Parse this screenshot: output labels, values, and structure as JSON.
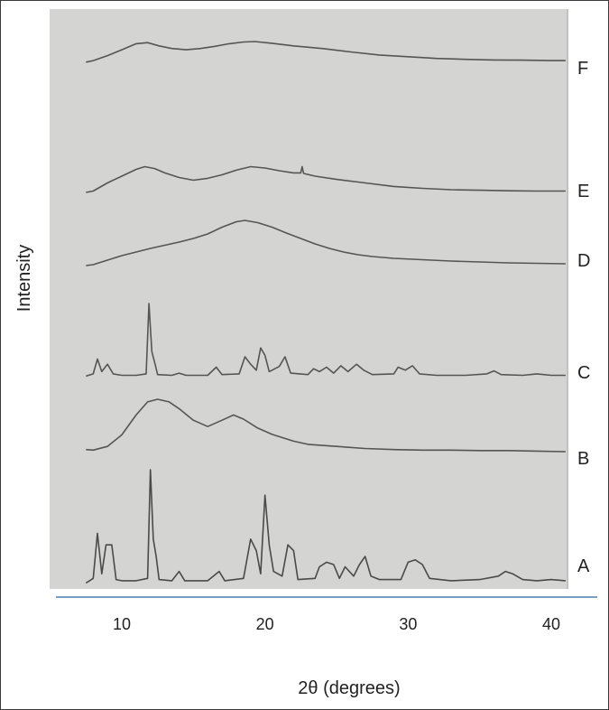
{
  "chart_data": {
    "type": "line",
    "xlabel": "2θ (degrees)",
    "ylabel": "Intensity",
    "xlim": [
      7,
      41
    ],
    "x_ticks": [
      10,
      20,
      30,
      40
    ],
    "grid": false,
    "series": [
      {
        "name": "A",
        "color": "#4a4a4a",
        "points": [
          [
            7.5,
            0.02
          ],
          [
            8.0,
            0.06
          ],
          [
            8.3,
            0.45
          ],
          [
            8.6,
            0.1
          ],
          [
            8.9,
            0.35
          ],
          [
            9.3,
            0.35
          ],
          [
            9.6,
            0.05
          ],
          [
            10,
            0.04
          ],
          [
            11,
            0.04
          ],
          [
            11.8,
            0.06
          ],
          [
            12.0,
            1.0
          ],
          [
            12.2,
            0.4
          ],
          [
            12.4,
            0.25
          ],
          [
            12.6,
            0.05
          ],
          [
            13.5,
            0.04
          ],
          [
            14.0,
            0.12
          ],
          [
            14.4,
            0.04
          ],
          [
            16,
            0.04
          ],
          [
            16.8,
            0.12
          ],
          [
            17.2,
            0.04
          ],
          [
            18.5,
            0.06
          ],
          [
            19.0,
            0.4
          ],
          [
            19.4,
            0.3
          ],
          [
            19.7,
            0.1
          ],
          [
            20.0,
            0.78
          ],
          [
            20.3,
            0.35
          ],
          [
            20.6,
            0.12
          ],
          [
            21.2,
            0.08
          ],
          [
            21.6,
            0.35
          ],
          [
            22.0,
            0.3
          ],
          [
            22.3,
            0.05
          ],
          [
            23.5,
            0.06
          ],
          [
            23.8,
            0.16
          ],
          [
            24.3,
            0.2
          ],
          [
            24.8,
            0.18
          ],
          [
            25.2,
            0.06
          ],
          [
            25.6,
            0.16
          ],
          [
            26.2,
            0.08
          ],
          [
            26.6,
            0.18
          ],
          [
            27.0,
            0.25
          ],
          [
            27.4,
            0.08
          ],
          [
            28.0,
            0.05
          ],
          [
            29.5,
            0.05
          ],
          [
            30.0,
            0.2
          ],
          [
            30.5,
            0.22
          ],
          [
            31.0,
            0.18
          ],
          [
            31.5,
            0.06
          ],
          [
            33,
            0.04
          ],
          [
            35,
            0.05
          ],
          [
            36.3,
            0.08
          ],
          [
            36.8,
            0.12
          ],
          [
            37.3,
            0.1
          ],
          [
            38,
            0.05
          ],
          [
            39,
            0.04
          ],
          [
            40,
            0.05
          ],
          [
            41,
            0.04
          ]
        ]
      },
      {
        "name": "B",
        "color": "#555555",
        "points": [
          [
            7.5,
            0.04
          ],
          [
            8,
            0.03
          ],
          [
            9,
            0.1
          ],
          [
            10,
            0.32
          ],
          [
            11,
            0.7
          ],
          [
            11.8,
            0.95
          ],
          [
            12.5,
            1.0
          ],
          [
            13.3,
            0.95
          ],
          [
            14,
            0.82
          ],
          [
            15,
            0.6
          ],
          [
            16,
            0.48
          ],
          [
            17,
            0.6
          ],
          [
            17.8,
            0.7
          ],
          [
            18.5,
            0.62
          ],
          [
            19.5,
            0.45
          ],
          [
            20.5,
            0.33
          ],
          [
            22,
            0.2
          ],
          [
            23,
            0.14
          ],
          [
            25,
            0.1
          ],
          [
            27,
            0.06
          ],
          [
            29,
            0.04
          ],
          [
            31,
            0.03
          ],
          [
            33,
            0.03
          ],
          [
            35,
            0.02
          ],
          [
            37,
            0.02
          ],
          [
            39,
            0.01
          ],
          [
            41,
            0.0
          ]
        ]
      },
      {
        "name": "C",
        "color": "#555555",
        "points": [
          [
            7.5,
            0.02
          ],
          [
            8.0,
            0.05
          ],
          [
            8.3,
            0.25
          ],
          [
            8.6,
            0.08
          ],
          [
            9.0,
            0.18
          ],
          [
            9.4,
            0.05
          ],
          [
            10,
            0.03
          ],
          [
            11,
            0.03
          ],
          [
            11.7,
            0.05
          ],
          [
            11.9,
            1.0
          ],
          [
            12.1,
            0.35
          ],
          [
            12.3,
            0.2
          ],
          [
            12.5,
            0.04
          ],
          [
            13.5,
            0.03
          ],
          [
            14.0,
            0.06
          ],
          [
            14.5,
            0.03
          ],
          [
            16,
            0.03
          ],
          [
            16.6,
            0.14
          ],
          [
            17.0,
            0.04
          ],
          [
            18.2,
            0.05
          ],
          [
            18.6,
            0.28
          ],
          [
            19.0,
            0.18
          ],
          [
            19.4,
            0.1
          ],
          [
            19.7,
            0.4
          ],
          [
            20.0,
            0.3
          ],
          [
            20.3,
            0.08
          ],
          [
            21.0,
            0.15
          ],
          [
            21.4,
            0.28
          ],
          [
            21.8,
            0.06
          ],
          [
            23.0,
            0.04
          ],
          [
            23.4,
            0.12
          ],
          [
            23.8,
            0.08
          ],
          [
            24.3,
            0.14
          ],
          [
            24.8,
            0.06
          ],
          [
            25.3,
            0.16
          ],
          [
            25.8,
            0.08
          ],
          [
            26.4,
            0.18
          ],
          [
            26.9,
            0.1
          ],
          [
            27.5,
            0.04
          ],
          [
            29.0,
            0.05
          ],
          [
            29.3,
            0.14
          ],
          [
            29.8,
            0.1
          ],
          [
            30.3,
            0.16
          ],
          [
            30.8,
            0.05
          ],
          [
            32,
            0.03
          ],
          [
            34,
            0.03
          ],
          [
            35.5,
            0.05
          ],
          [
            36.0,
            0.09
          ],
          [
            36.5,
            0.04
          ],
          [
            38,
            0.03
          ],
          [
            39,
            0.05
          ],
          [
            40,
            0.03
          ],
          [
            41,
            0.03
          ]
        ]
      },
      {
        "name": "D",
        "color": "#555555",
        "points": [
          [
            7.5,
            0.0
          ],
          [
            8,
            0.02
          ],
          [
            9,
            0.12
          ],
          [
            10,
            0.22
          ],
          [
            11,
            0.3
          ],
          [
            12,
            0.38
          ],
          [
            13,
            0.45
          ],
          [
            14,
            0.52
          ],
          [
            15,
            0.6
          ],
          [
            16,
            0.7
          ],
          [
            17,
            0.85
          ],
          [
            18,
            0.97
          ],
          [
            18.6,
            1.0
          ],
          [
            19.5,
            0.95
          ],
          [
            20.5,
            0.85
          ],
          [
            21.5,
            0.72
          ],
          [
            22.5,
            0.6
          ],
          [
            23.5,
            0.48
          ],
          [
            24.5,
            0.38
          ],
          [
            25.5,
            0.3
          ],
          [
            26.5,
            0.24
          ],
          [
            27.5,
            0.2
          ],
          [
            29,
            0.16
          ],
          [
            31,
            0.13
          ],
          [
            33,
            0.1
          ],
          [
            35,
            0.08
          ],
          [
            37,
            0.06
          ],
          [
            39,
            0.05
          ],
          [
            41,
            0.04
          ]
        ]
      },
      {
        "name": "E",
        "color": "#555555",
        "points": [
          [
            7.5,
            0.0
          ],
          [
            8,
            0.05
          ],
          [
            9,
            0.35
          ],
          [
            10,
            0.6
          ],
          [
            11,
            0.85
          ],
          [
            11.6,
            0.95
          ],
          [
            12.3,
            0.88
          ],
          [
            13,
            0.72
          ],
          [
            14,
            0.55
          ],
          [
            15,
            0.45
          ],
          [
            16,
            0.52
          ],
          [
            17,
            0.65
          ],
          [
            18,
            0.82
          ],
          [
            19,
            0.95
          ],
          [
            20,
            0.9
          ],
          [
            21,
            0.8
          ],
          [
            22,
            0.72
          ],
          [
            22.5,
            0.72
          ],
          [
            22.6,
            0.95
          ],
          [
            22.7,
            0.7
          ],
          [
            23.5,
            0.6
          ],
          [
            25,
            0.48
          ],
          [
            27,
            0.35
          ],
          [
            29,
            0.22
          ],
          [
            31,
            0.15
          ],
          [
            33,
            0.1
          ],
          [
            35,
            0.08
          ],
          [
            37,
            0.06
          ],
          [
            39,
            0.05
          ],
          [
            41,
            0.05
          ]
        ]
      },
      {
        "name": "F",
        "color": "#555555",
        "points": [
          [
            7.5,
            0.05
          ],
          [
            8,
            0.12
          ],
          [
            9,
            0.35
          ],
          [
            10,
            0.62
          ],
          [
            11,
            0.9
          ],
          [
            11.8,
            0.95
          ],
          [
            12.6,
            0.8
          ],
          [
            13.5,
            0.68
          ],
          [
            14.5,
            0.62
          ],
          [
            15.5,
            0.68
          ],
          [
            16.5,
            0.78
          ],
          [
            17.5,
            0.9
          ],
          [
            18.5,
            0.98
          ],
          [
            19.3,
            1.0
          ],
          [
            20.5,
            0.92
          ],
          [
            22,
            0.8
          ],
          [
            24,
            0.68
          ],
          [
            26,
            0.52
          ],
          [
            28,
            0.38
          ],
          [
            30,
            0.3
          ],
          [
            32,
            0.22
          ],
          [
            34,
            0.18
          ],
          [
            36,
            0.15
          ],
          [
            38,
            0.14
          ],
          [
            40,
            0.12
          ],
          [
            41,
            0.12
          ]
        ]
      }
    ]
  }
}
